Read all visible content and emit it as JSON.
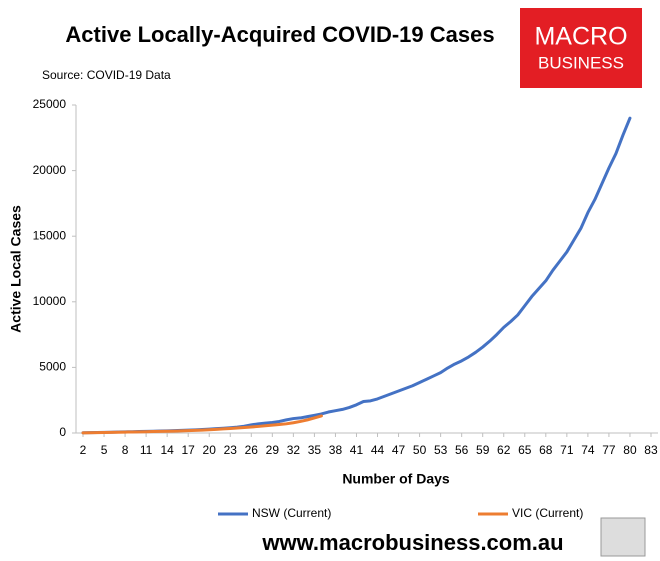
{
  "chart_data": {
    "type": "line",
    "title": "Active Locally-Acquired COVID-19 Cases",
    "subtitle": "Source: COVID-19 Data",
    "logo": [
      "MACRO",
      "BUSINESS"
    ],
    "footer": "www.macrobusiness.com.au",
    "x_label": "Number of Days",
    "y_label": "Active Local Cases",
    "x": [
      2,
      3,
      4,
      5,
      6,
      7,
      8,
      9,
      10,
      11,
      12,
      13,
      14,
      15,
      16,
      17,
      18,
      19,
      20,
      21,
      22,
      23,
      24,
      25,
      26,
      27,
      28,
      29,
      30,
      31,
      32,
      33,
      34,
      35,
      36,
      37,
      38,
      39,
      40,
      41,
      42,
      43,
      44,
      45,
      46,
      47,
      48,
      49,
      50,
      51,
      52,
      53,
      54,
      55,
      56,
      57,
      58,
      59,
      60,
      61,
      62,
      63,
      64,
      65,
      66,
      67,
      68,
      69,
      70,
      71,
      72,
      73,
      74,
      75,
      76,
      77,
      78,
      79,
      80
    ],
    "series": [
      {
        "name": "NSW (Current)",
        "color": "#4472c4",
        "values": [
          20,
          30,
          40,
          50,
          60,
          80,
          90,
          100,
          110,
          120,
          130,
          150,
          160,
          180,
          200,
          220,
          240,
          270,
          300,
          330,
          360,
          400,
          450,
          520,
          620,
          700,
          750,
          800,
          880,
          1000,
          1100,
          1150,
          1250,
          1350,
          1450,
          1600,
          1700,
          1800,
          1950,
          2150,
          2400,
          2450,
          2600,
          2800,
          3000,
          3200,
          3400,
          3600,
          3850,
          4100,
          4350,
          4600,
          4950,
          5250,
          5500,
          5800,
          6150,
          6550,
          7000,
          7500,
          8050,
          8500,
          9000,
          9700,
          10400,
          11000,
          11600,
          12400,
          13100,
          13800,
          14700,
          15600,
          16800,
          17800,
          19000,
          20200,
          21300,
          22700,
          24000
        ]
      },
      {
        "name": "VIC (Current)",
        "color": "#ed7d31",
        "values": [
          10,
          20,
          30,
          40,
          50,
          60,
          70,
          80,
          90,
          100,
          110,
          120,
          130,
          140,
          160,
          180,
          200,
          220,
          250,
          280,
          310,
          340,
          380,
          420,
          460,
          500,
          550,
          600,
          650,
          700,
          780,
          880,
          1000,
          1150,
          1300,
          null,
          null,
          null,
          null,
          null,
          null,
          null,
          null,
          null,
          null,
          null,
          null,
          null,
          null,
          null,
          null,
          null,
          null,
          null,
          null,
          null,
          null,
          null,
          null,
          null,
          null,
          null,
          null,
          null,
          null,
          null,
          null,
          null,
          null,
          null,
          null,
          null,
          null,
          null,
          null,
          null,
          null,
          null,
          null
        ]
      }
    ],
    "xlim": [
      1,
      84
    ],
    "xticks": [
      2,
      5,
      8,
      11,
      14,
      17,
      20,
      23,
      26,
      29,
      32,
      35,
      38,
      41,
      44,
      47,
      50,
      53,
      56,
      59,
      62,
      65,
      68,
      71,
      74,
      77,
      80,
      83
    ],
    "ylim": [
      0,
      25000
    ],
    "yticks": [
      0,
      5000,
      10000,
      15000,
      20000,
      25000
    ],
    "grid": false,
    "legend": "bottom"
  }
}
